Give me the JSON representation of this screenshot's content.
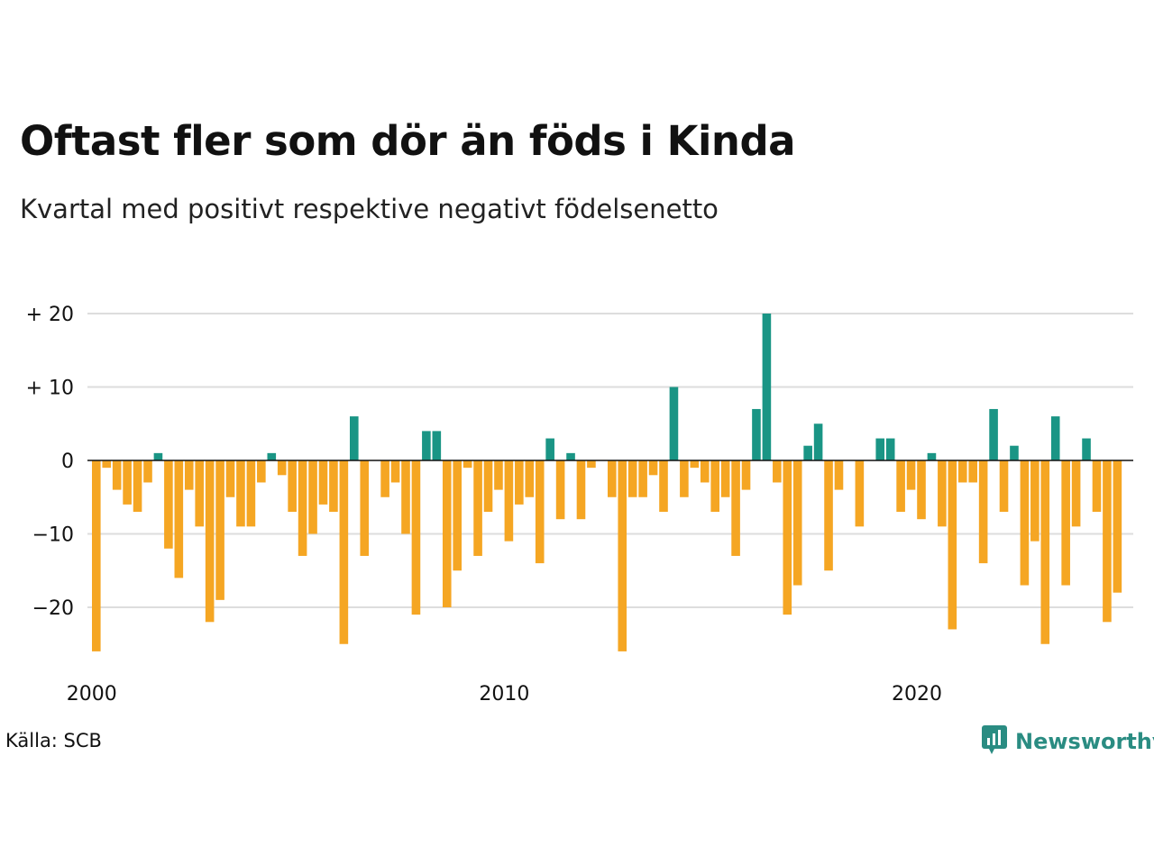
{
  "title": "Oftast fler som dör än föds i Kinda",
  "subtitle": "Kvartal med positivt respektive negativt födelsenetto",
  "source": "Källa: SCB",
  "brand": {
    "name": "Newsworthy",
    "color": "#2a8c82",
    "icon": "newsworthy-logo-icon"
  },
  "colors": {
    "positive": "#1a9585",
    "negative": "#f5a623",
    "grid": "#dddddd",
    "zero": "#111111"
  },
  "chart_data": {
    "type": "bar",
    "title": "Oftast fler som dör än föds i Kinda",
    "subtitle": "Kvartal med positivt respektive negativt födelsenetto",
    "x_start": 2000,
    "periods_per_year": 4,
    "x_ticks": [
      2000,
      2010,
      2020
    ],
    "y_ticks": [
      20,
      10,
      0,
      -10,
      -20
    ],
    "y_tick_labels": [
      "+ 20",
      "+ 10",
      "0",
      "−10",
      "−20"
    ],
    "ylim": [
      -26,
      20
    ],
    "grid": true,
    "values": [
      -26,
      -1,
      -4,
      -6,
      -7,
      -3,
      1,
      -12,
      -16,
      -4,
      -9,
      -22,
      -19,
      -5,
      -9,
      -9,
      -3,
      1,
      -2,
      -7,
      -13,
      -10,
      -6,
      -7,
      -25,
      6,
      -13,
      0,
      -5,
      -3,
      -10,
      -21,
      4,
      4,
      -20,
      -15,
      -1,
      -13,
      -7,
      -4,
      -11,
      -6,
      -5,
      -14,
      3,
      -8,
      1,
      -8,
      -1,
      0,
      -5,
      -26,
      -5,
      -5,
      -2,
      -7,
      10,
      -5,
      -1,
      -3,
      -7,
      -5,
      -13,
      -4,
      7,
      20,
      -3,
      -21,
      -17,
      2,
      5,
      -15,
      -4,
      0,
      -9,
      0,
      3,
      3,
      -7,
      -4,
      -8,
      1,
      -9,
      -23,
      -3,
      -3,
      -14,
      7,
      -7,
      2,
      -17,
      -11,
      -25,
      6,
      -17,
      -9,
      3,
      -7,
      -22,
      -18
    ]
  }
}
